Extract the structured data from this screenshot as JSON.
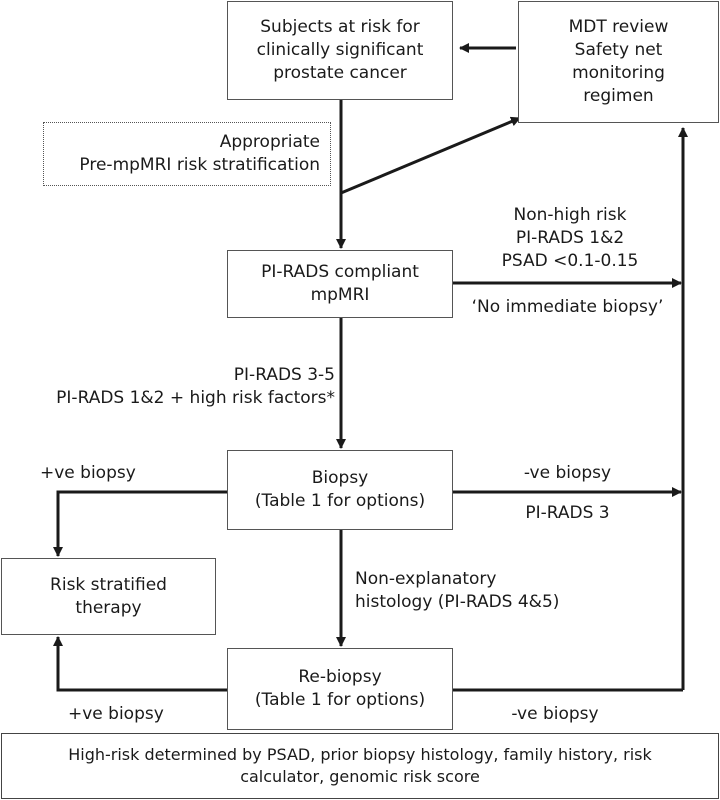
{
  "boxes": {
    "subjects": [
      "Subjects at risk for",
      "clinically significant",
      "prostate cancer"
    ],
    "mdt": [
      "MDT review",
      "Safety net",
      "monitoring",
      "regimen"
    ],
    "stratification": [
      "Appropriate",
      "Pre-mpMRI risk stratification"
    ],
    "mpmri": [
      "PI-RADS compliant",
      "mpMRI"
    ],
    "biopsy": [
      "Biopsy",
      "(Table 1 for options)"
    ],
    "therapy": [
      "Risk stratified",
      "therapy"
    ],
    "rebiopsy": [
      "Re-biopsy",
      "(Table 1 for options)"
    ],
    "footnote": [
      "High-risk determined by PSAD, prior biopsy histology, family history, risk",
      "calculator, genomic risk score"
    ]
  },
  "labels": {
    "non_high_risk": [
      "Non-high risk",
      "PI-RADS 1&2",
      "PSAD <0.1-0.15"
    ],
    "no_biopsy": "‘No immediate biopsy’",
    "pirads_high": [
      "PI-RADS 3-5",
      "PI-RADS 1&2 + high risk factors*"
    ],
    "pos_biopsy_1": "+ve biopsy",
    "neg_biopsy_1": "-ve biopsy",
    "pirads3": "PI-RADS 3",
    "non_explanatory": [
      "Non-explanatory",
      "histology (PI-RADS 4&5)"
    ],
    "pos_biopsy_2": "+ve biopsy",
    "neg_biopsy_2": "-ve biopsy"
  },
  "colors": {
    "line": "#1a1a1a",
    "border": "#555555"
  }
}
